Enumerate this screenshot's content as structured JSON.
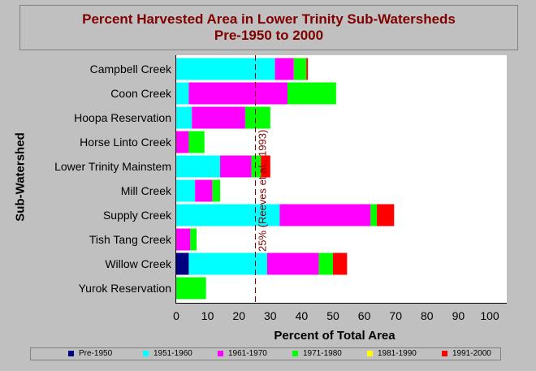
{
  "chart_data": {
    "type": "bar",
    "orientation": "horizontal",
    "stacked": true,
    "title": "Percent Harvested Area in Lower Trinity Sub-Watersheds",
    "subtitle": "Pre-1950 to 2000",
    "xlabel": "Percent of Total Area",
    "ylabel": "Sub-Watershed",
    "xlim": [
      0,
      100
    ],
    "xticks": [
      0,
      10,
      20,
      30,
      40,
      50,
      60,
      70,
      80,
      90,
      100
    ],
    "categories": [
      "Campbell Creek",
      "Coon Creek",
      "Hoopa Reservation",
      "Horse Linto Creek",
      "Lower Trinity Mainstem",
      "Mill Creek",
      "Supply Creek",
      "Tish Tang Creek",
      "Willow Creek",
      "Yurok Reservation"
    ],
    "series": [
      {
        "name": "Pre-1950",
        "color": "#000080",
        "values": [
          0,
          0,
          0,
          0,
          0,
          0,
          0,
          0,
          4,
          0
        ]
      },
      {
        "name": "1951-1960",
        "color": "#00ffff",
        "values": [
          31.5,
          4,
          5,
          0,
          14,
          6,
          33,
          0,
          25,
          0
        ]
      },
      {
        "name": "1961-1970",
        "color": "#ff00ff",
        "values": [
          6,
          31.5,
          17,
          4,
          10,
          5.5,
          29,
          4.5,
          16.5,
          0
        ]
      },
      {
        "name": "1971-1980",
        "color": "#00ff00",
        "values": [
          4,
          15.5,
          8,
          5,
          3,
          2.5,
          2,
          2,
          4.5,
          9.5
        ]
      },
      {
        "name": "1981-1990",
        "color": "#ffff00",
        "values": [
          0,
          0,
          0,
          0,
          0,
          0,
          0,
          0,
          0,
          0
        ]
      },
      {
        "name": "1991-2000",
        "color": "#ff0000",
        "values": [
          0.5,
          0,
          0,
          0,
          3,
          0,
          5.5,
          0,
          4.5,
          0
        ]
      }
    ],
    "reference_line": {
      "value": 25,
      "label": "25% (Reeves et al., 1993)",
      "color": "#800000"
    },
    "grid": false,
    "legend_position": "bottom"
  }
}
